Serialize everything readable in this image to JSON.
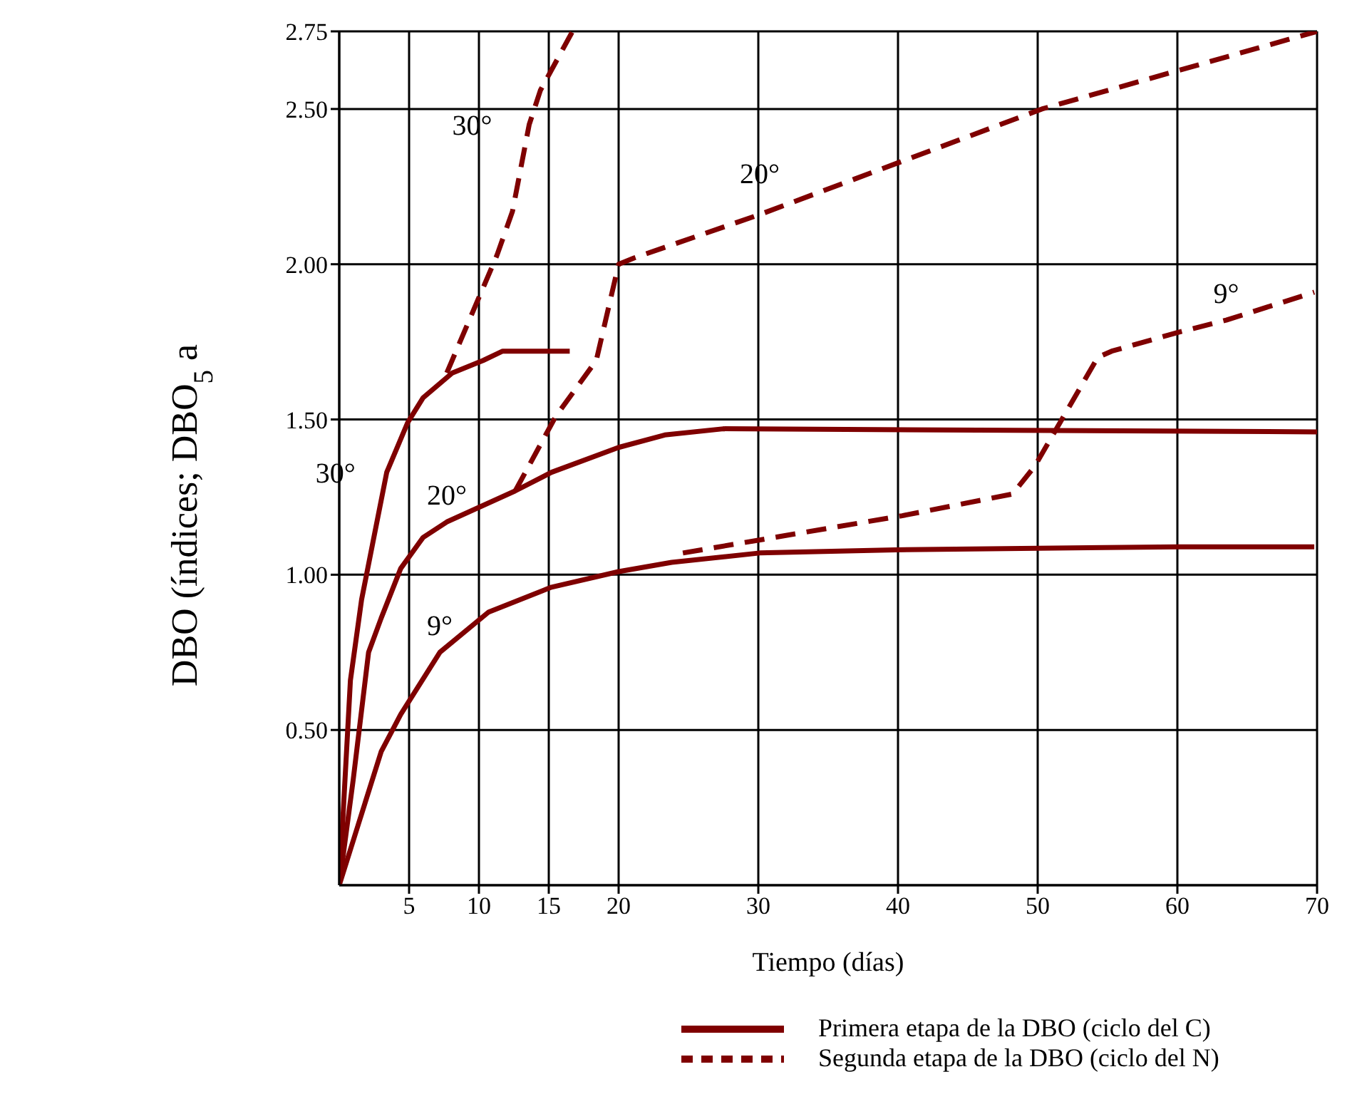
{
  "chart_data": {
    "type": "line",
    "xlabel": "Tiempo  (días)",
    "ylabel": "DBO  (índices; DBO$_{5}$ a",
    "xlim": [
      0,
      70
    ],
    "xticks": [
      5,
      10,
      15,
      20,
      30,
      40,
      50,
      60,
      70
    ],
    "ylim": [
      0,
      2.75
    ],
    "yticks": [
      {
        "value": 0.5,
        "label": "0.50"
      },
      {
        "value": 1,
        "label": "1.00"
      },
      {
        "value": 1.5,
        "label": "1.50"
      },
      {
        "value": 2,
        "label": "2.00"
      },
      {
        "value": 2.5,
        "label": "2.50"
      },
      2.75
    ],
    "grid": true,
    "legend": "bottom",
    "marker": "none",
    "series": [
      {
        "name": "Primera etapa de la DBO (ciclo del C)",
        "color": "#7f0000",
        "line_style": "solid",
        "x": [
          0,
          0.8,
          1.6,
          3.4,
          4.9,
          6.0,
          8.1,
          10.3,
          11.7,
          16.5
        ],
        "values": [
          0,
          0.66,
          0.92,
          1.33,
          1.49,
          1.57,
          1.65,
          1.69,
          1.72,
          1.72
        ]
      },
      {
        "color": "#7f0000",
        "line_style": "solid",
        "x": [
          0,
          1.0,
          2.1,
          3.0,
          4.4,
          6.0,
          7.7,
          12.6,
          15.2,
          20.0,
          23.3,
          27.5,
          70
        ],
        "values": [
          0,
          0.34,
          0.75,
          0.86,
          1.02,
          1.12,
          1.17,
          1.27,
          1.33,
          1.41,
          1.45,
          1.47,
          1.46
        ]
      },
      {
        "color": "#7f0000",
        "line_style": "solid",
        "x": [
          0,
          3.0,
          4.4,
          7.2,
          10.7,
          15.2,
          20.0,
          23.8,
          30.1,
          39.8,
          60,
          69.8
        ],
        "values": [
          0,
          0.43,
          0.55,
          0.75,
          0.88,
          0.96,
          1.01,
          1.04,
          1.07,
          1.08,
          1.09,
          1.09
        ]
      },
      {
        "name": "Segunda etapa de la DBO (ciclo del N)",
        "color": "#7f0000",
        "line_style": "dashed",
        "x": [
          7.7,
          11.3,
          12.4,
          13.6,
          14.4,
          16.7
        ],
        "values": [
          1.65,
          2.03,
          2.17,
          2.45,
          2.56,
          2.75
        ]
      },
      {
        "color": "#7f0000",
        "line_style": "dashed",
        "x": [
          12.6,
          15.5,
          18.4,
          20.0,
          21.1,
          30.1,
          50.3,
          70
        ],
        "values": [
          1.27,
          1.51,
          1.69,
          2.0,
          2.02,
          2.16,
          2.5,
          2.75
        ]
      },
      {
        "color": "#7f0000",
        "line_style": "dashed",
        "x": [
          24.6,
          40.3,
          48.2,
          49.8,
          54.3,
          55.3,
          60,
          63.5,
          69.8
        ],
        "values": [
          1.07,
          1.19,
          1.26,
          1.35,
          1.7,
          1.72,
          1.78,
          1.82,
          1.91
        ]
      }
    ],
    "annotations": [
      {
        "text": "30°",
        "x": 13.6,
        "y": 2.45
      },
      {
        "text": "30°",
        "x": 3.4,
        "y": 1.33
      },
      {
        "text": "20°",
        "x": 7.7,
        "y": 1.17
      },
      {
        "text": "9°",
        "x": 7.2,
        "y": 0.75
      },
      {
        "text": "20°",
        "x": 30.1,
        "y": 2.16
      },
      {
        "text": "9°",
        "x": 63.5,
        "y": 1.82
      }
    ]
  }
}
